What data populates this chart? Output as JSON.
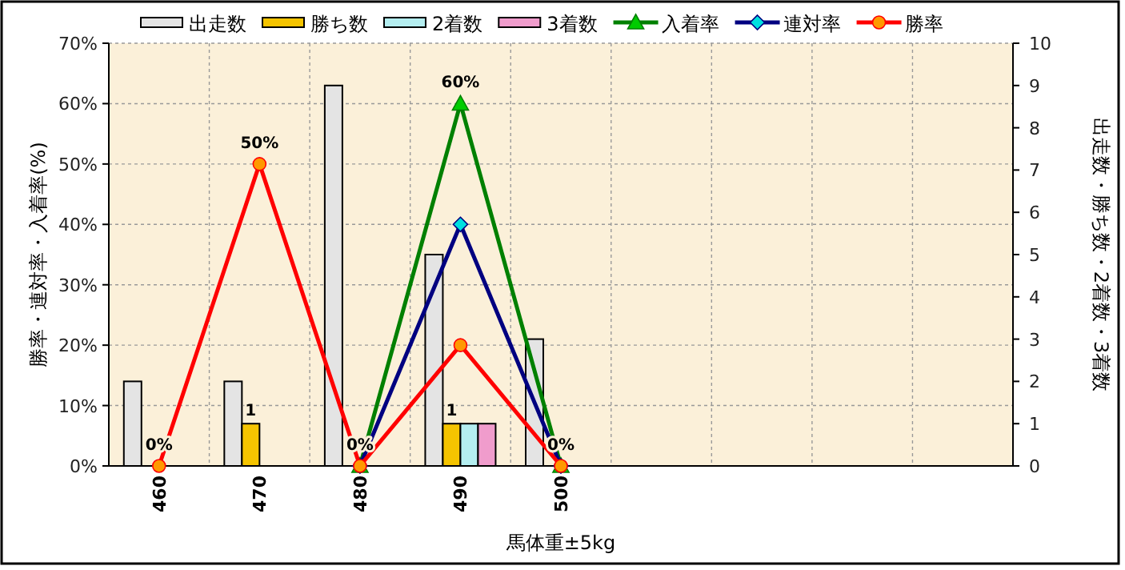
{
  "chart_data": {
    "type": "bar",
    "xlabel": "馬体重±5kg",
    "ylabel": "勝率・連対率・入着率(%)",
    "y2label": "出走数・勝ち数・2着数・3着数",
    "categories": [
      "460",
      "470",
      "480",
      "490",
      "500",
      null,
      null,
      null,
      null
    ],
    "series": [
      {
        "name": "出走数",
        "axis": "y2",
        "color": "#e4e4e4",
        "values": [
          2,
          2,
          9,
          5,
          3,
          null,
          null,
          null,
          null
        ]
      },
      {
        "name": "勝ち数",
        "axis": "y2",
        "color": "#f5c400",
        "values": [
          0,
          1,
          0,
          1,
          0,
          null,
          null,
          null,
          null
        ],
        "value_labels": [
          null,
          "1",
          null,
          "1",
          null,
          null,
          null,
          null,
          null
        ]
      },
      {
        "name": "2着数",
        "axis": "y2",
        "color": "#b4eef0",
        "values": [
          0,
          0,
          0,
          1,
          0,
          null,
          null,
          null,
          null
        ]
      },
      {
        "name": "3着数",
        "axis": "y2",
        "color": "#f09ccc",
        "values": [
          0,
          0,
          0,
          1,
          0,
          null,
          null,
          null,
          null
        ]
      },
      {
        "name": "入着率",
        "type": "line",
        "marker": "triangle",
        "color": "#008000",
        "values": [
          null,
          null,
          0,
          60,
          0,
          null,
          null,
          null,
          null
        ],
        "value_labels": [
          null,
          null,
          null,
          "60%",
          null,
          null,
          null,
          null,
          null
        ]
      },
      {
        "name": "連対率",
        "type": "line",
        "marker": "diamond",
        "color": "#000080",
        "values": [
          null,
          null,
          0,
          40,
          0,
          null,
          null,
          null,
          null
        ]
      },
      {
        "name": "勝率",
        "type": "line",
        "marker": "circle",
        "color": "#ff0000",
        "values": [
          0,
          50,
          0,
          20,
          0,
          null,
          null,
          null,
          null
        ],
        "value_labels": [
          "0%",
          "50%",
          "0%",
          null,
          "0%",
          null,
          null,
          null,
          null
        ]
      }
    ],
    "ylim": [
      0,
      70
    ],
    "yticks": [
      {
        "value": 0,
        "label": "0%"
      },
      {
        "value": 10,
        "label": "10%"
      },
      {
        "value": 20,
        "label": "20%"
      },
      {
        "value": 30,
        "label": "30%"
      },
      {
        "value": 40,
        "label": "40%"
      },
      {
        "value": 50,
        "label": "50%"
      },
      {
        "value": 60,
        "label": "60%"
      },
      {
        "value": 70,
        "label": "70%"
      }
    ],
    "y2lim": [
      0,
      10
    ],
    "y2ticks": [
      0,
      1,
      2,
      3,
      4,
      5,
      6,
      7,
      8,
      9,
      10
    ],
    "grid": true,
    "legend": "top",
    "line_style": "solid"
  }
}
